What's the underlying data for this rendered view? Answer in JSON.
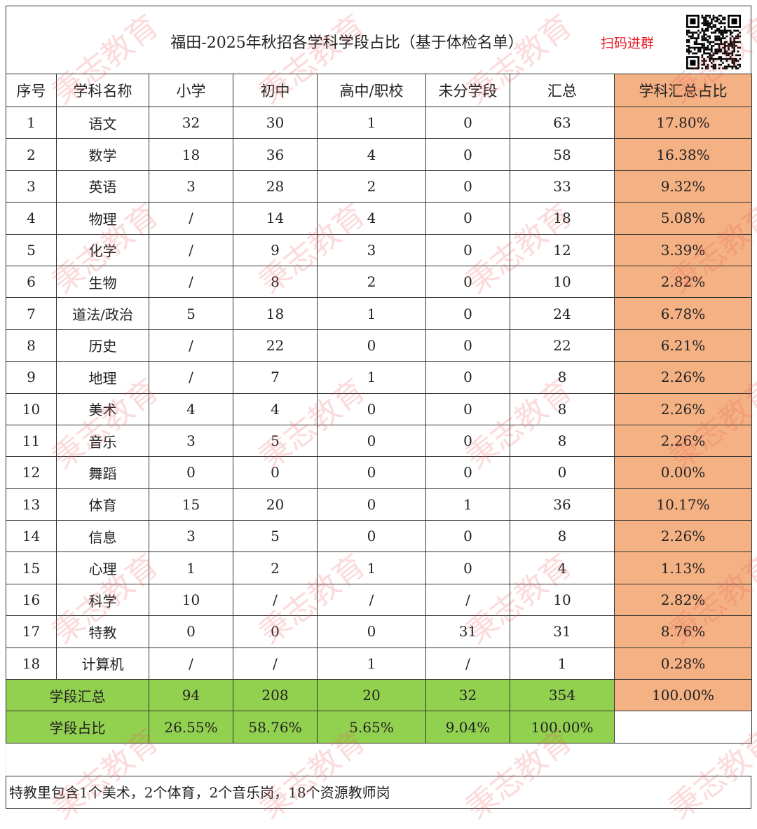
{
  "title": "福田-2025年秋招各学科学段占比（基于体检名单）",
  "qr_label": "扫码进群",
  "watermark": "秉志教育",
  "colors": {
    "pct_column": "#f4b183",
    "summary_rows": "#92d050",
    "qr_label": "#e8202a"
  },
  "headers": [
    "序号",
    "学科名称",
    "小学",
    "初中",
    "高中/职校",
    "未分学段",
    "汇总",
    "学科汇总占比"
  ],
  "rows": [
    [
      "1",
      "语文",
      "32",
      "30",
      "1",
      "0",
      "63",
      "17.80%"
    ],
    [
      "2",
      "数学",
      "18",
      "36",
      "4",
      "0",
      "58",
      "16.38%"
    ],
    [
      "3",
      "英语",
      "3",
      "28",
      "2",
      "0",
      "33",
      "9.32%"
    ],
    [
      "4",
      "物理",
      "/",
      "14",
      "4",
      "0",
      "18",
      "5.08%"
    ],
    [
      "5",
      "化学",
      "/",
      "9",
      "3",
      "0",
      "12",
      "3.39%"
    ],
    [
      "6",
      "生物",
      "/",
      "8",
      "2",
      "0",
      "10",
      "2.82%"
    ],
    [
      "7",
      "道法/政治",
      "5",
      "18",
      "1",
      "0",
      "24",
      "6.78%"
    ],
    [
      "8",
      "历史",
      "/",
      "22",
      "0",
      "0",
      "22",
      "6.21%"
    ],
    [
      "9",
      "地理",
      "/",
      "7",
      "1",
      "0",
      "8",
      "2.26%"
    ],
    [
      "10",
      "美术",
      "4",
      "4",
      "0",
      "0",
      "8",
      "2.26%"
    ],
    [
      "11",
      "音乐",
      "3",
      "5",
      "0",
      "0",
      "8",
      "2.26%"
    ],
    [
      "12",
      "舞蹈",
      "0",
      "0",
      "0",
      "0",
      "0",
      "0.00%"
    ],
    [
      "13",
      "体育",
      "15",
      "20",
      "0",
      "1",
      "36",
      "10.17%"
    ],
    [
      "14",
      "信息",
      "3",
      "5",
      "0",
      "0",
      "8",
      "2.26%"
    ],
    [
      "15",
      "心理",
      "1",
      "2",
      "1",
      "0",
      "4",
      "1.13%"
    ],
    [
      "16",
      "科学",
      "10",
      "/",
      "/",
      "/",
      "10",
      "2.82%"
    ],
    [
      "17",
      "特教",
      "0",
      "0",
      "0",
      "31",
      "31",
      "8.76%"
    ],
    [
      "18",
      "计算机",
      "/",
      "/",
      "1",
      "/",
      "1",
      "0.28%"
    ]
  ],
  "summary_total": {
    "label": "学段汇总",
    "values": [
      "94",
      "208",
      "20",
      "32",
      "354"
    ],
    "pct": "100.00%"
  },
  "summary_ratio": {
    "label": "学段占比",
    "values": [
      "26.55%",
      "58.76%",
      "5.65%",
      "9.04%",
      "100.00%"
    ]
  },
  "note": "特教里包含1个美术，2个体育，2个音乐岗，18个资源教师岗"
}
